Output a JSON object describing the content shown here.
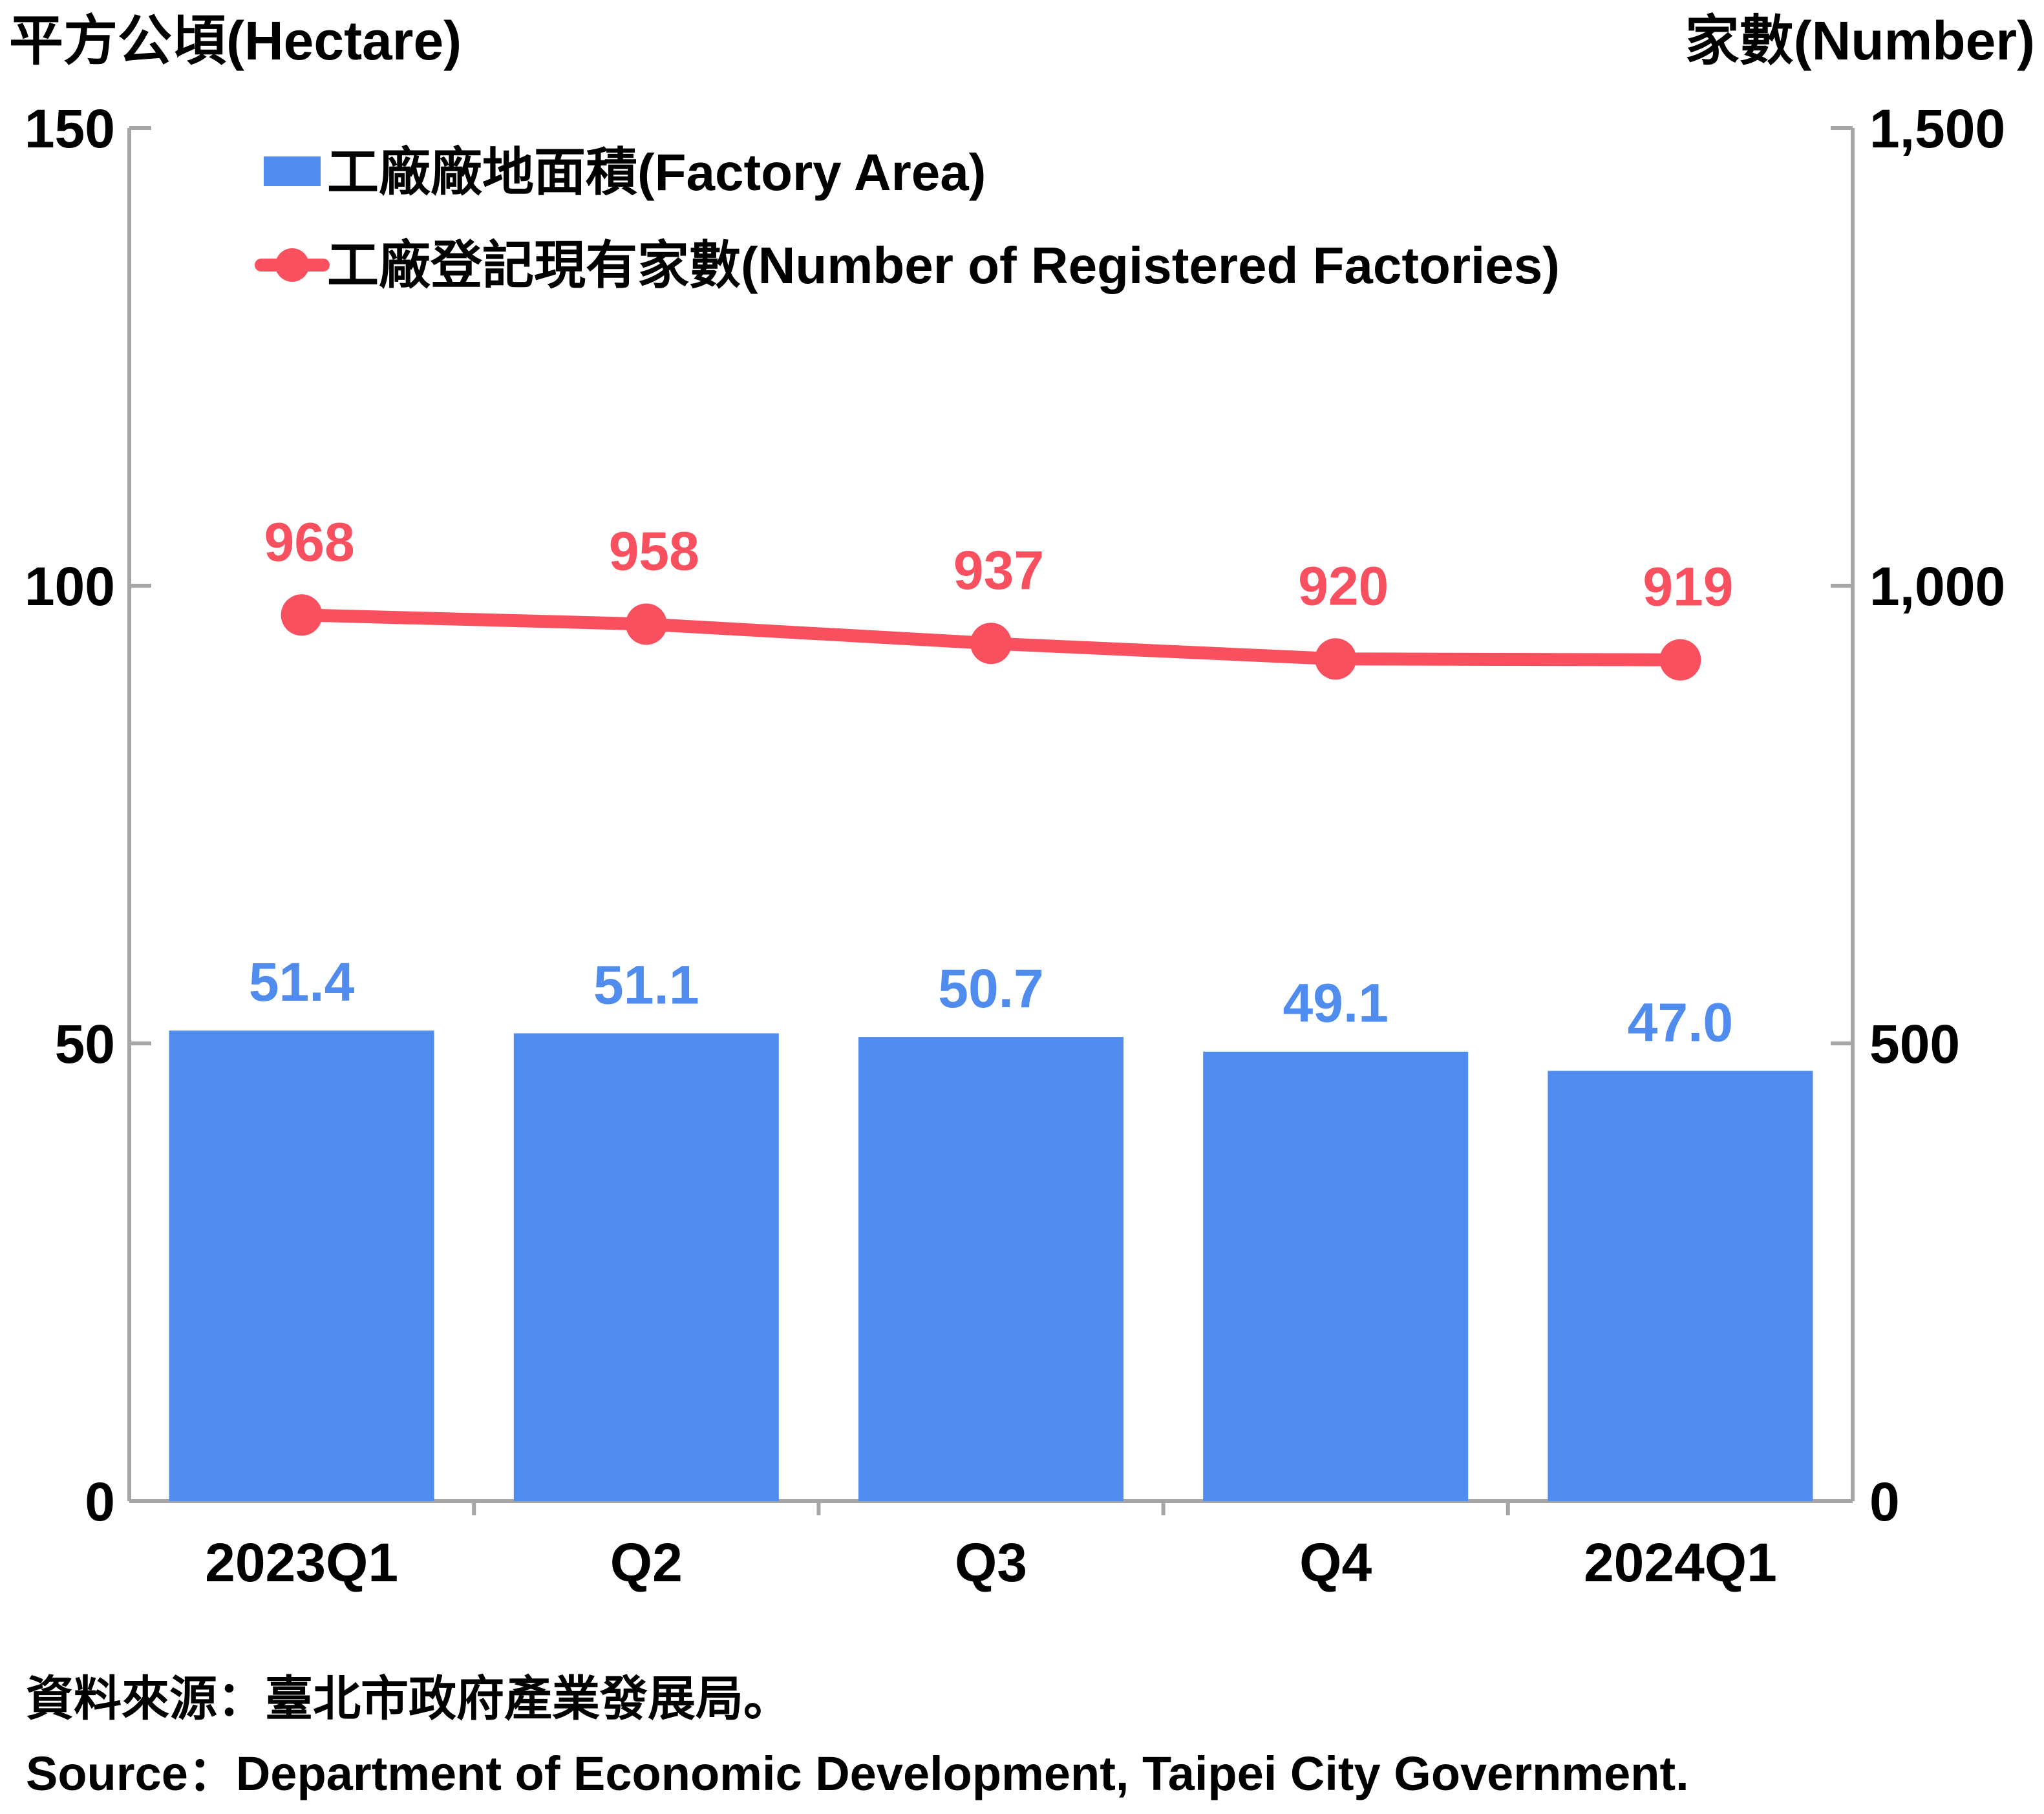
{
  "chart_data": {
    "type": "bar",
    "categories": [
      "2023Q1",
      "Q2",
      "Q3",
      "Q4",
      "2024Q1"
    ],
    "y_left": {
      "label": "平方公頃(Hectare)",
      "ticks": [
        "0",
        "50",
        "100",
        "150"
      ],
      "range": [
        0,
        150
      ]
    },
    "y_right": {
      "label": "家數(Number)",
      "ticks": [
        "0",
        "500",
        "1,000",
        "1,500"
      ],
      "range": [
        0,
        1500
      ]
    },
    "series": [
      {
        "name": "工廠廠地面積(Factory Area)",
        "type": "bar",
        "axis": "left",
        "color": "#4f8ced",
        "values": [
          51.4,
          51.1,
          50.7,
          49.1,
          47.0
        ],
        "labels": [
          "51.4",
          "51.1",
          "50.7",
          "49.1",
          "47.0"
        ]
      },
      {
        "name": "工廠登記現有家數(Number of Registered Factories)",
        "type": "line",
        "axis": "right",
        "color": "#f9505f",
        "values": [
          968,
          958,
          937,
          920,
          919
        ],
        "labels": [
          "968",
          "958",
          "937",
          "920",
          "919"
        ]
      }
    ],
    "legend_position": "top-left",
    "grid": false
  },
  "source": {
    "zh": "資料來源：臺北市政府產業發展局。",
    "en": "Source：Department of Economic Development, Taipei City Government."
  }
}
